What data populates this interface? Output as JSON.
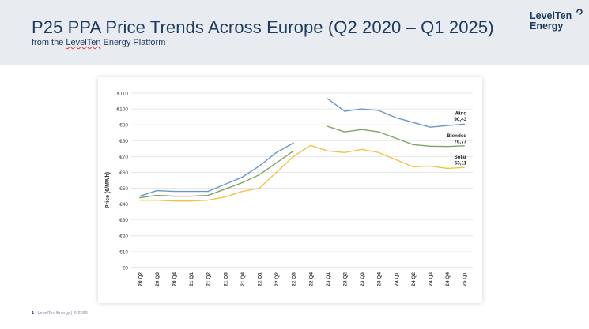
{
  "header": {
    "title": "P25 PPA Price Trends Across Europe (Q2 2020 – Q1 2025)",
    "subtitle_prefix": "from the ",
    "subtitle_brand": "LevelTen",
    "subtitle_suffix": " Energy Platform"
  },
  "logo": {
    "line1": "LevelTen",
    "line2": "Energy"
  },
  "footer": {
    "page_number": "1",
    "text": " | LevelTen Energy | © 2020"
  },
  "colors": {
    "wind": "#6a96cc",
    "blended": "#7ea461",
    "solar": "#f4c242",
    "header_bg": "#e8ebef",
    "title": "#1d3a5f"
  },
  "chart_data": {
    "type": "line",
    "title": "",
    "xlabel": "",
    "ylabel": "Price (€/MWh)",
    "ylim": [
      0,
      110
    ],
    "yticks": [
      0,
      10,
      20,
      30,
      40,
      50,
      60,
      70,
      80,
      90,
      100,
      110
    ],
    "ytick_labels": [
      "€0",
      "€10",
      "€20",
      "€30",
      "€40",
      "€50",
      "€60",
      "€70",
      "€80",
      "€90",
      "€100",
      "€110"
    ],
    "grid": true,
    "categories": [
      "20 Q2",
      "20 Q3",
      "20 Q4",
      "21 Q1",
      "21 Q2",
      "21 Q3",
      "21 Q4",
      "22 Q1",
      "22 Q2",
      "22 Q3",
      "22 Q4",
      "23 Q1",
      "23 Q2",
      "23 Q3",
      "23 Q4",
      "24 Q1",
      "24 Q2",
      "24 Q3",
      "24 Q4",
      "25 Q1"
    ],
    "series": [
      {
        "name": "Wind",
        "end_label": "90,43",
        "segments": [
          {
            "x": [
              "20 Q2",
              "20 Q3",
              "20 Q4",
              "21 Q1",
              "21 Q2",
              "21 Q3",
              "21 Q4",
              "22 Q1",
              "22 Q2",
              "22 Q3"
            ],
            "values": [
              45,
              48.5,
              48,
              48,
              48,
              52.5,
              57,
              64,
              72.5,
              78.5
            ]
          },
          {
            "x": [
              "23 Q1",
              "23 Q2",
              "23 Q3",
              "23 Q4",
              "24 Q1",
              "24 Q2",
              "24 Q3",
              "24 Q4",
              "25 Q1"
            ],
            "values": [
              106.5,
              98.5,
              100,
              99,
              94.5,
              91.5,
              88.5,
              89.5,
              90.43
            ]
          }
        ]
      },
      {
        "name": "Blended",
        "end_label": "76,77",
        "segments": [
          {
            "x": [
              "20 Q2",
              "20 Q3",
              "20 Q4",
              "21 Q1",
              "21 Q2",
              "21 Q3",
              "21 Q4",
              "22 Q1",
              "22 Q2",
              "22 Q3"
            ],
            "values": [
              44,
              45.5,
              45,
              45,
              45.5,
              49.5,
              53.5,
              58.5,
              66,
              73.5
            ]
          },
          {
            "x": [
              "23 Q1",
              "23 Q2",
              "23 Q3",
              "23 Q4",
              "24 Q1",
              "24 Q2",
              "24 Q3",
              "24 Q4",
              "25 Q1"
            ],
            "values": [
              89,
              85.5,
              87,
              85.5,
              81.5,
              77.5,
              76.5,
              76.3,
              76.77
            ]
          }
        ]
      },
      {
        "name": "Solar",
        "end_label": "63,11",
        "segments": [
          {
            "x": [
              "20 Q2",
              "20 Q3",
              "20 Q4",
              "21 Q1",
              "21 Q2",
              "21 Q3",
              "21 Q4",
              "22 Q1",
              "22 Q2",
              "22 Q3",
              "22 Q4",
              "23 Q1",
              "23 Q2",
              "23 Q3",
              "23 Q4",
              "24 Q1",
              "24 Q2",
              "24 Q3",
              "24 Q4",
              "25 Q1"
            ],
            "values": [
              42.5,
              42.5,
              42,
              42,
              42.5,
              44.5,
              48,
              50,
              60,
              70,
              77,
              73.5,
              72.5,
              74.5,
              72.5,
              68,
              63.5,
              64,
              62.5,
              63.11
            ]
          }
        ]
      }
    ]
  }
}
